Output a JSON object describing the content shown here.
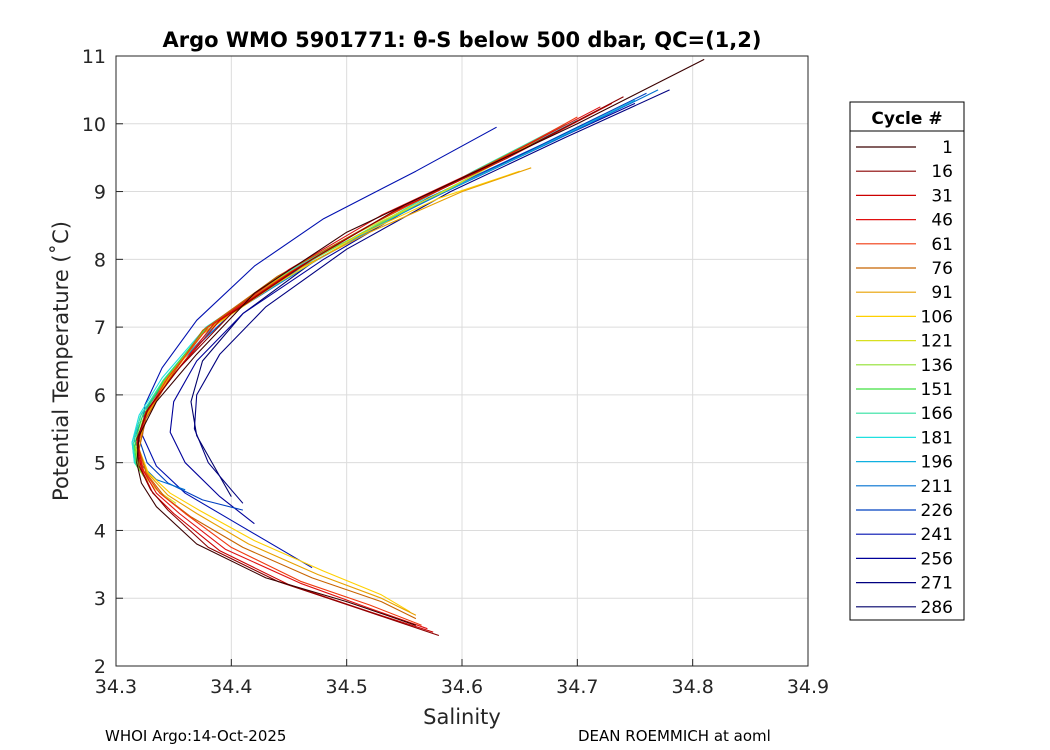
{
  "footer": {
    "left": "WHOI Argo:14-Oct-2025",
    "right": "DEAN ROEMMICH at aoml"
  },
  "chart_data": {
    "type": "line",
    "title": "Argo WMO 5901771: θ-S below 500 dbar,  QC=(1,2)",
    "xlabel": "Salinity",
    "ylabel": "Potential Temperature (˚C)",
    "xlim": [
      34.3,
      34.9
    ],
    "ylim": [
      2,
      11
    ],
    "xticks": [
      "34.3",
      "34.4",
      "34.5",
      "34.6",
      "34.7",
      "34.8",
      "34.9"
    ],
    "yticks": [
      "2",
      "3",
      "4",
      "5",
      "6",
      "7",
      "8",
      "9",
      "10",
      "11"
    ],
    "grid": true,
    "legend": {
      "title": "Cycle #",
      "placement": "right-outside",
      "entries": [
        {
          "label": "1",
          "color": "#3a0000"
        },
        {
          "label": "16",
          "color": "#8a0000"
        },
        {
          "label": "31",
          "color": "#cc0000"
        },
        {
          "label": "46",
          "color": "#e01010"
        },
        {
          "label": "61",
          "color": "#f03a10"
        },
        {
          "label": "76",
          "color": "#c86400"
        },
        {
          "label": "91",
          "color": "#e8a000"
        },
        {
          "label": "106",
          "color": "#ffd000"
        },
        {
          "label": "121",
          "color": "#d8e020"
        },
        {
          "label": "136",
          "color": "#90e030"
        },
        {
          "label": "151",
          "color": "#40e040"
        },
        {
          "label": "166",
          "color": "#30e0a0"
        },
        {
          "label": "181",
          "color": "#20e0e0"
        },
        {
          "label": "196",
          "color": "#10b0e0"
        },
        {
          "label": "211",
          "color": "#0070d0"
        },
        {
          "label": "226",
          "color": "#0040c0"
        },
        {
          "label": "241",
          "color": "#0010b0"
        },
        {
          "label": "256",
          "color": "#00009a"
        },
        {
          "label": "271",
          "color": "#000080"
        },
        {
          "label": "286",
          "color": "#00006a"
        }
      ]
    },
    "series": [
      {
        "cycle": 1,
        "color": "#3a0000",
        "x": [
          34.81,
          34.7,
          34.6,
          34.5,
          34.42,
          34.37,
          34.335,
          34.32,
          34.318,
          34.322,
          34.335,
          34.37,
          34.43,
          34.5,
          34.56
        ],
        "y": [
          10.95,
          10.0,
          9.2,
          8.4,
          7.5,
          6.6,
          5.9,
          5.4,
          5.0,
          4.7,
          4.35,
          3.8,
          3.3,
          2.95,
          2.6
        ]
      },
      {
        "cycle": 16,
        "color": "#8a0000",
        "x": [
          34.74,
          34.65,
          34.55,
          34.47,
          34.4,
          34.355,
          34.328,
          34.318,
          34.32,
          34.33,
          34.345,
          34.38,
          34.44,
          34.51,
          34.58
        ],
        "y": [
          10.4,
          9.6,
          8.8,
          8.0,
          7.2,
          6.4,
          5.8,
          5.35,
          4.95,
          4.6,
          4.3,
          3.75,
          3.25,
          2.85,
          2.45
        ]
      },
      {
        "cycle": 31,
        "color": "#cc0000",
        "x": [
          34.73,
          34.64,
          34.54,
          34.46,
          34.39,
          34.35,
          34.326,
          34.318,
          34.322,
          34.332,
          34.35,
          34.39,
          34.45,
          34.52,
          34.575
        ],
        "y": [
          10.3,
          9.5,
          8.7,
          7.9,
          7.1,
          6.3,
          5.75,
          5.3,
          4.9,
          4.55,
          4.25,
          3.7,
          3.2,
          2.8,
          2.5
        ]
      },
      {
        "cycle": 46,
        "color": "#e01010",
        "x": [
          34.72,
          34.63,
          34.53,
          34.45,
          34.385,
          34.35,
          34.327,
          34.319,
          34.323,
          34.335,
          34.355,
          34.395,
          34.46,
          34.52,
          34.57
        ],
        "y": [
          10.25,
          9.45,
          8.65,
          7.85,
          7.05,
          6.3,
          5.75,
          5.3,
          4.9,
          4.55,
          4.25,
          3.72,
          3.22,
          2.85,
          2.55
        ]
      },
      {
        "cycle": 61,
        "color": "#f03a10",
        "x": [
          34.7,
          34.62,
          34.53,
          34.45,
          34.38,
          34.345,
          34.325,
          34.319,
          34.324,
          34.338,
          34.36,
          34.4,
          34.46,
          34.52,
          34.565
        ],
        "y": [
          10.1,
          9.35,
          8.6,
          7.8,
          7.0,
          6.25,
          5.7,
          5.25,
          4.88,
          4.55,
          4.25,
          3.75,
          3.25,
          2.9,
          2.6
        ]
      },
      {
        "cycle": 76,
        "color": "#c86400",
        "x": [
          34.68,
          34.6,
          34.52,
          34.44,
          34.375,
          34.345,
          34.326,
          34.32,
          34.326,
          34.342,
          34.365,
          34.41,
          34.47,
          34.53,
          34.56
        ],
        "y": [
          9.9,
          9.2,
          8.5,
          7.75,
          6.95,
          6.2,
          5.65,
          5.2,
          4.85,
          4.5,
          4.2,
          3.75,
          3.3,
          2.95,
          2.7
        ]
      },
      {
        "cycle": 91,
        "color": "#e8a000",
        "x": [
          34.66,
          34.6,
          34.52,
          34.44,
          34.375,
          34.342,
          34.325,
          34.32,
          34.327,
          34.345,
          34.37,
          34.415,
          34.475,
          34.53,
          34.56
        ],
        "y": [
          9.35,
          9.0,
          8.4,
          7.7,
          6.9,
          6.2,
          5.65,
          5.2,
          4.85,
          4.52,
          4.25,
          3.8,
          3.35,
          3.0,
          2.75
        ]
      },
      {
        "cycle": 106,
        "color": "#ffd000",
        "x": [
          34.65,
          34.58,
          34.51,
          34.44,
          34.375,
          34.342,
          34.324,
          34.32,
          34.328,
          34.347,
          34.372,
          34.42,
          34.48,
          34.53,
          34.555
        ],
        "y": [
          9.3,
          8.9,
          8.35,
          7.65,
          6.9,
          6.15,
          5.6,
          5.2,
          4.85,
          4.55,
          4.3,
          3.85,
          3.4,
          3.05,
          2.8
        ]
      },
      {
        "cycle": 121,
        "color": "#d8e020",
        "x": [
          34.66,
          34.59,
          34.51,
          34.44,
          34.375,
          34.342,
          34.324,
          34.318,
          34.322,
          34.335,
          34.352
        ],
        "y": [
          9.7,
          9.05,
          8.4,
          7.7,
          6.9,
          6.15,
          5.6,
          5.2,
          4.85,
          4.6,
          4.4
        ]
      },
      {
        "cycle": 136,
        "color": "#90e030",
        "x": [
          34.67,
          34.6,
          34.52,
          34.44,
          34.376,
          34.342,
          34.323,
          34.317,
          34.32,
          34.33
        ],
        "y": [
          9.8,
          9.15,
          8.45,
          7.72,
          6.92,
          6.17,
          5.62,
          5.22,
          4.9,
          4.7
        ]
      },
      {
        "cycle": 151,
        "color": "#40e040",
        "x": [
          34.68,
          34.6,
          34.52,
          34.44,
          34.376,
          34.341,
          34.322,
          34.316,
          34.318,
          34.326
        ],
        "y": [
          9.9,
          9.2,
          8.5,
          7.75,
          6.95,
          6.2,
          5.65,
          5.25,
          4.95,
          4.75
        ]
      },
      {
        "cycle": 166,
        "color": "#30e0a0",
        "x": [
          34.69,
          34.61,
          34.53,
          34.45,
          34.378,
          34.341,
          34.321,
          34.315,
          34.317,
          34.324
        ],
        "y": [
          10.0,
          9.3,
          8.55,
          7.8,
          6.98,
          6.22,
          5.68,
          5.28,
          4.98,
          4.8
        ]
      },
      {
        "cycle": 181,
        "color": "#20e0e0",
        "x": [
          34.7,
          34.62,
          34.53,
          34.45,
          34.378,
          34.34,
          34.32,
          34.314,
          34.316,
          34.322
        ],
        "y": [
          10.05,
          9.35,
          8.6,
          7.82,
          7.0,
          6.25,
          5.7,
          5.3,
          5.0,
          4.85
        ]
      },
      {
        "cycle": 196,
        "color": "#10b0e0",
        "x": [
          34.75,
          34.66,
          34.56,
          34.47,
          34.39,
          34.345,
          34.322,
          34.314,
          34.316,
          34.325
        ],
        "y": [
          10.35,
          9.6,
          8.8,
          7.95,
          7.1,
          6.3,
          5.72,
          5.3,
          5.0,
          4.8
        ]
      },
      {
        "cycle": 211,
        "color": "#0070d0",
        "x": [
          34.77,
          34.68,
          34.58,
          34.48,
          34.4,
          34.35,
          34.325,
          34.316,
          34.32,
          34.335,
          34.36
        ],
        "y": [
          10.5,
          9.75,
          8.95,
          8.1,
          7.2,
          6.4,
          5.78,
          5.35,
          5.0,
          4.75,
          4.6
        ]
      },
      {
        "cycle": 226,
        "color": "#0040c0",
        "x": [
          34.76,
          34.67,
          34.57,
          34.48,
          34.4,
          34.35,
          34.327,
          34.32,
          34.327,
          34.345,
          34.375,
          34.41
        ],
        "y": [
          10.45,
          9.7,
          8.9,
          8.05,
          7.2,
          6.4,
          5.8,
          5.35,
          5.0,
          4.7,
          4.45,
          4.3
        ]
      },
      {
        "cycle": 241,
        "color": "#0010b0",
        "x": [
          34.63,
          34.56,
          34.48,
          34.42,
          34.37,
          34.34,
          34.325,
          34.323,
          34.335,
          34.36,
          34.4,
          34.47
        ],
        "y": [
          9.95,
          9.3,
          8.6,
          7.9,
          7.1,
          6.4,
          5.85,
          5.4,
          4.95,
          4.55,
          4.15,
          3.45
        ]
      },
      {
        "cycle": 256,
        "color": "#00009a",
        "x": [
          34.75,
          34.66,
          34.56,
          34.48,
          34.41,
          34.37,
          34.35,
          34.347,
          34.36,
          34.39,
          34.42
        ],
        "y": [
          10.3,
          9.6,
          8.8,
          8.0,
          7.2,
          6.5,
          5.9,
          5.45,
          5.0,
          4.5,
          4.1
        ]
      },
      {
        "cycle": 271,
        "color": "#000080",
        "x": [
          34.78,
          34.69,
          34.59,
          34.5,
          34.43,
          34.39,
          34.37,
          34.368,
          34.38,
          34.4,
          34.41
        ],
        "y": [
          10.5,
          9.8,
          9.0,
          8.15,
          7.3,
          6.6,
          6.0,
          5.5,
          5.0,
          4.6,
          4.4
        ]
      },
      {
        "cycle": 286,
        "color": "#00006a",
        "x": [
          34.72,
          34.64,
          34.55,
          34.47,
          34.41,
          34.375,
          34.365,
          34.37,
          34.385,
          34.4
        ],
        "y": [
          10.1,
          9.45,
          8.7,
          7.95,
          7.2,
          6.5,
          5.9,
          5.4,
          4.95,
          4.5
        ]
      }
    ]
  }
}
